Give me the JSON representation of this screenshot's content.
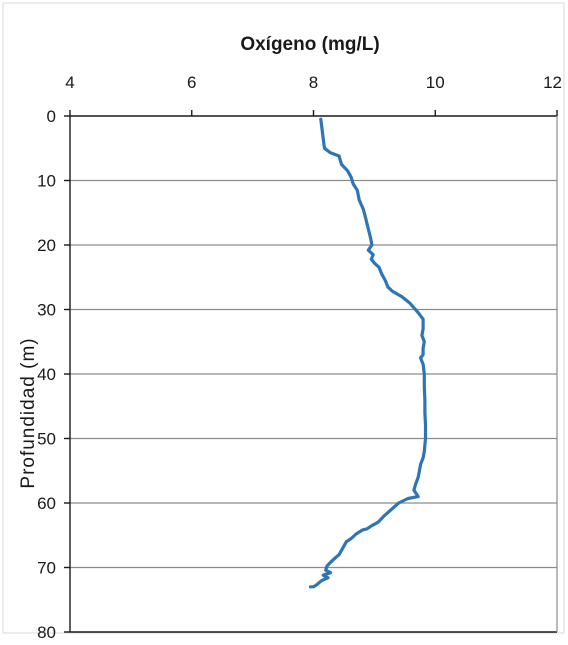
{
  "chart_data": {
    "type": "line",
    "title": "",
    "xlabel": "Oxígeno (mg/L)",
    "ylabel": "Profundidad  (m)",
    "xlim": [
      4,
      12
    ],
    "ylim": [
      0,
      80
    ],
    "y_inverted": true,
    "x_axis_position": "top",
    "x_ticks": [
      "4",
      "6",
      "8",
      "10",
      "12"
    ],
    "y_ticks": [
      "0",
      "10",
      "20",
      "30",
      "40",
      "50",
      "60",
      "70",
      "80"
    ],
    "grid": "horizontal",
    "legend": "none",
    "series": [
      {
        "color": "#2e75b6",
        "points": [
          [
            8.12,
            0.5
          ],
          [
            8.14,
            2.0
          ],
          [
            8.16,
            3.5
          ],
          [
            8.18,
            5.0
          ],
          [
            8.28,
            5.7
          ],
          [
            8.42,
            6.2
          ],
          [
            8.46,
            7.5
          ],
          [
            8.56,
            8.5
          ],
          [
            8.62,
            9.5
          ],
          [
            8.65,
            10.5
          ],
          [
            8.72,
            11.5
          ],
          [
            8.75,
            13.0
          ],
          [
            8.82,
            14.5
          ],
          [
            8.86,
            16.0
          ],
          [
            8.9,
            17.5
          ],
          [
            8.94,
            19.0
          ],
          [
            8.96,
            20.0
          ],
          [
            8.9,
            20.8
          ],
          [
            8.98,
            21.5
          ],
          [
            8.95,
            22.2
          ],
          [
            9.0,
            22.8
          ],
          [
            9.08,
            23.5
          ],
          [
            9.12,
            24.5
          ],
          [
            9.18,
            25.5
          ],
          [
            9.22,
            26.5
          ],
          [
            9.3,
            27.2
          ],
          [
            9.45,
            28.0
          ],
          [
            9.58,
            29.0
          ],
          [
            9.72,
            30.5
          ],
          [
            9.8,
            31.5
          ],
          [
            9.8,
            33.0
          ],
          [
            9.78,
            34.0
          ],
          [
            9.82,
            35.0
          ],
          [
            9.8,
            36.0
          ],
          [
            9.8,
            37.0
          ],
          [
            9.76,
            37.5
          ],
          [
            9.8,
            38.5
          ],
          [
            9.82,
            40.0
          ],
          [
            9.82,
            42.0
          ],
          [
            9.83,
            44.0
          ],
          [
            9.83,
            46.0
          ],
          [
            9.84,
            48.0
          ],
          [
            9.84,
            50.0
          ],
          [
            9.82,
            52.0
          ],
          [
            9.8,
            53.0
          ],
          [
            9.76,
            54.0
          ],
          [
            9.74,
            55.0
          ],
          [
            9.72,
            56.0
          ],
          [
            9.68,
            57.0
          ],
          [
            9.65,
            58.0
          ],
          [
            9.72,
            59.0
          ],
          [
            9.55,
            59.3
          ],
          [
            9.4,
            60.0
          ],
          [
            9.28,
            61.0
          ],
          [
            9.16,
            62.0
          ],
          [
            9.06,
            63.0
          ],
          [
            8.96,
            63.5
          ],
          [
            8.88,
            64.0
          ],
          [
            8.8,
            64.2
          ],
          [
            8.7,
            64.8
          ],
          [
            8.62,
            65.5
          ],
          [
            8.54,
            66.0
          ],
          [
            8.48,
            67.0
          ],
          [
            8.42,
            68.0
          ],
          [
            8.36,
            68.5
          ],
          [
            8.28,
            69.2
          ],
          [
            8.22,
            69.8
          ],
          [
            8.2,
            70.4
          ],
          [
            8.28,
            70.8
          ],
          [
            8.16,
            71.2
          ],
          [
            8.24,
            71.6
          ],
          [
            8.14,
            72.0
          ],
          [
            8.1,
            72.3
          ],
          [
            8.05,
            72.7
          ],
          [
            8.0,
            73.0
          ],
          [
            7.95,
            73.0
          ]
        ]
      }
    ]
  }
}
